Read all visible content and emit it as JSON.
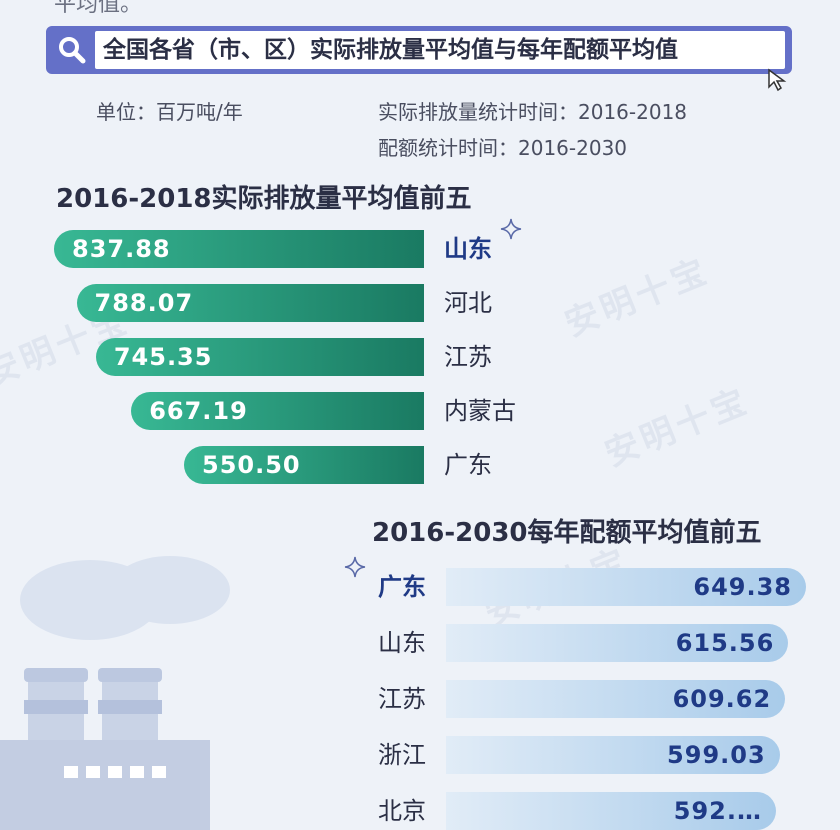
{
  "header": {
    "top_fragment": "平均值。",
    "search_title": "全国各省（市、区）实际排放量平均值与每年配额平均值",
    "unit": "单位：百万吨/年",
    "emission_period": "实际排放量统计时间：2016-2018",
    "quota_period": "配额统计时间：2016-2030"
  },
  "watermark_text": "安明十宝",
  "chart_data": [
    {
      "type": "bar",
      "title": "2016-2018实际排放量平均值前五",
      "categories": [
        "山东",
        "河北",
        "江苏",
        "内蒙古",
        "广东"
      ],
      "values": [
        837.88,
        788.07,
        745.35,
        667.19,
        550.5
      ],
      "value_labels": [
        "837.88",
        "788.07",
        "745.35",
        "667.19",
        "550.50"
      ],
      "orientation": "horizontal",
      "colors": {
        "bar_start": "#38b894",
        "bar_end": "#1a7a62"
      }
    },
    {
      "type": "bar",
      "title": "2016-2030每年配额平均值前五",
      "categories": [
        "广东",
        "山东",
        "江苏",
        "浙江",
        "北京"
      ],
      "values": [
        649.38,
        615.56,
        609.62,
        599.03,
        592.0
      ],
      "value_labels": [
        "649.38",
        "615.56",
        "609.62",
        "599.03",
        "592.…"
      ],
      "orientation": "horizontal",
      "colors": {
        "bar_start": "#e1ecf7",
        "bar_end": "#a8cbea"
      }
    }
  ],
  "colors": {
    "accent": "#6470c8",
    "background": "#eef2f8",
    "highlight_label": "#1f3a86"
  }
}
